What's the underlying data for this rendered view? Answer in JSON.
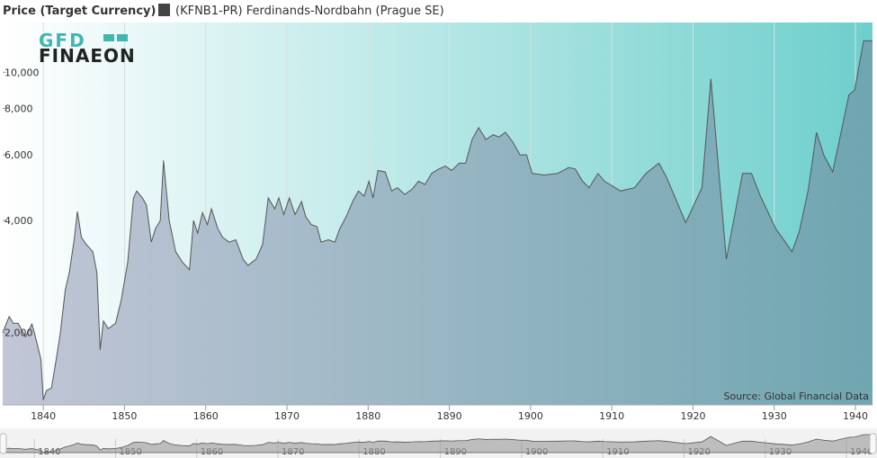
{
  "chart_data": {
    "type": "area",
    "title": "Price (Target Currency)",
    "logo": [
      "GFD",
      "FINAEON"
    ],
    "source": "Source: Global Financial Data",
    "ylog": true,
    "xgrid": true,
    "xlim": [
      1835,
      1942.1
    ],
    "ylim": [
      1280,
      13600
    ],
    "xticks": [
      1840,
      1850,
      1860,
      1870,
      1880,
      1890,
      1900,
      1910,
      1920,
      1930,
      1940
    ],
    "yticks": [
      {
        "value": 2000,
        "label": "2,000"
      },
      {
        "value": 4000,
        "label": "4,000"
      },
      {
        "value": 6000,
        "label": "6,000"
      },
      {
        "value": 8000,
        "label": "8,000"
      },
      {
        "value": 10000,
        "label": "10,000"
      }
    ],
    "x": [
      1835.0,
      1835.8,
      1836.3,
      1836.9,
      1837.8,
      1838.6,
      1838.9,
      1839.7,
      1840.0,
      1840.4,
      1841.0,
      1841.6,
      1842.1,
      1842.7,
      1843.2,
      1843.8,
      1844.2,
      1844.7,
      1845.3,
      1846.1,
      1846.6,
      1847.0,
      1847.4,
      1848.0,
      1848.9,
      1849.6,
      1850.4,
      1851.1,
      1851.5,
      1852.2,
      1852.7,
      1853.3,
      1853.8,
      1854.4,
      1854.8,
      1855.5,
      1856.3,
      1857.1,
      1858.0,
      1858.5,
      1859.0,
      1859.6,
      1860.2,
      1860.7,
      1861.5,
      1862.1,
      1862.9,
      1863.7,
      1864.6,
      1865.2,
      1866.2,
      1867.0,
      1867.7,
      1868.5,
      1869.0,
      1869.6,
      1870.3,
      1871.0,
      1871.8,
      1872.3,
      1873.0,
      1873.7,
      1874.2,
      1875.1,
      1875.9,
      1876.5,
      1877.3,
      1878.1,
      1878.8,
      1879.5,
      1880.1,
      1880.6,
      1881.2,
      1882.1,
      1882.9,
      1883.6,
      1884.5,
      1885.4,
      1886.2,
      1887.0,
      1887.8,
      1888.7,
      1889.5,
      1890.3,
      1891.2,
      1892.0,
      1892.8,
      1893.6,
      1894.5,
      1895.4,
      1896.1,
      1896.9,
      1897.8,
      1898.7,
      1899.5,
      1900.2,
      1901.7,
      1903.3,
      1904.7,
      1905.5,
      1906.4,
      1907.2,
      1908.3,
      1909.1,
      1911.1,
      1912.8,
      1914.2,
      1915.8,
      1916.7,
      1919.1,
      1921.1,
      1922.2,
      1924.1,
      1926.1,
      1927.2,
      1928.3,
      1930.2,
      1932.2,
      1933.1,
      1934.2,
      1935.2,
      1936.1,
      1937.2,
      1939.2,
      1939.9,
      1941.0,
      1942.1
    ],
    "series": [
      {
        "name": "(KFNB1-PR) Ferdinands-Nordbahn (Prague SE)",
        "color": "#555555",
        "values": [
          2000,
          2210,
          2120,
          2120,
          1950,
          2110,
          2000,
          1700,
          1320,
          1400,
          1420,
          1700,
          2000,
          2600,
          2900,
          3550,
          4230,
          3600,
          3450,
          3300,
          2900,
          1800,
          2150,
          2050,
          2120,
          2450,
          3100,
          4600,
          4800,
          4600,
          4400,
          3500,
          3800,
          4000,
          5800,
          4000,
          3300,
          3100,
          2950,
          4000,
          3700,
          4200,
          3900,
          4300,
          3800,
          3600,
          3500,
          3550,
          3150,
          3030,
          3150,
          3450,
          4600,
          4300,
          4600,
          4150,
          4600,
          4150,
          4500,
          4100,
          3900,
          3850,
          3500,
          3550,
          3500,
          3800,
          4100,
          4500,
          4800,
          4650,
          5100,
          4600,
          5450,
          5400,
          4800,
          4900,
          4700,
          4850,
          5100,
          5000,
          5350,
          5500,
          5600,
          5450,
          5700,
          5700,
          6600,
          7100,
          6600,
          6800,
          6700,
          6900,
          6500,
          6000,
          6000,
          5350,
          5300,
          5350,
          5550,
          5500,
          5100,
          4900,
          5350,
          5100,
          4800,
          4900,
          5350,
          5700,
          5250,
          3950,
          4900,
          9600,
          3150,
          5350,
          5350,
          4650,
          3800,
          3300,
          3750,
          4850,
          6900,
          6000,
          5400,
          8700,
          8950,
          12140,
          12140
        ]
      }
    ]
  }
}
